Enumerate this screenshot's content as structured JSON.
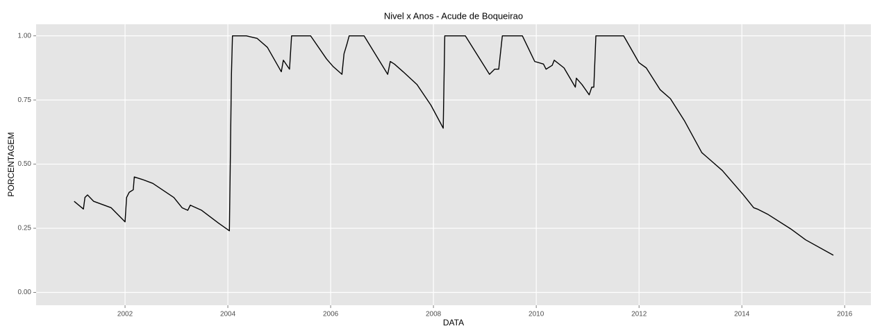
{
  "chart_data": {
    "type": "line",
    "title": "Nivel x Anos - Acude de Boqueirao",
    "x_label": "DATA",
    "y_label": "PORCENTAGEM",
    "grid": true,
    "color": "#000000",
    "xlim": [
      2000.27,
      2016.51
    ],
    "xticks": [
      2002,
      2004,
      2006,
      2008,
      2010,
      2012,
      2014,
      2016
    ],
    "ylim": [
      -0.05,
      1.045
    ],
    "yticks": [
      {
        "value": 0,
        "label": "0.00"
      },
      {
        "value": 0.25,
        "label": "0.25"
      },
      {
        "value": 0.5,
        "label": "0.50"
      },
      {
        "value": 0.75,
        "label": "0.75"
      },
      {
        "value": 1,
        "label": "1.00"
      }
    ],
    "x": [
      2001.01,
      2001.19,
      2001.22,
      2001.27,
      2001.39,
      2001.73,
      2002.0,
      2002.03,
      2002.08,
      2002.16,
      2002.18,
      2002.34,
      2002.54,
      2002.95,
      2003.11,
      2003.22,
      2003.27,
      2003.49,
      2003.82,
      2004.03,
      2004.07,
      2004.09,
      2004.36,
      2004.57,
      2004.77,
      2005.04,
      2005.08,
      2005.2,
      2005.24,
      2005.61,
      2005.92,
      2006.05,
      2006.22,
      2006.26,
      2006.32,
      2006.36,
      2006.65,
      2007.11,
      2007.16,
      2007.24,
      2007.41,
      2007.68,
      2007.95,
      2008.19,
      2008.22,
      2008.62,
      2009.09,
      2009.19,
      2009.27,
      2009.34,
      2009.73,
      2009.97,
      2010.14,
      2010.19,
      2010.31,
      2010.35,
      2010.54,
      2010.76,
      2010.78,
      2010.89,
      2011.03,
      2011.08,
      2011.12,
      2011.16,
      2011.7,
      2012.0,
      2012.14,
      2012.41,
      2012.61,
      2012.88,
      2013.22,
      2013.62,
      2014.03,
      2014.23,
      2014.3,
      2014.5,
      2014.97,
      2015.24,
      2015.78
    ],
    "values": [
      0.355,
      0.325,
      0.37,
      0.38,
      0.355,
      0.33,
      0.275,
      0.37,
      0.39,
      0.4,
      0.45,
      0.44,
      0.425,
      0.37,
      0.33,
      0.32,
      0.34,
      0.32,
      0.27,
      0.24,
      0.85,
      1.0,
      1.0,
      0.99,
      0.955,
      0.86,
      0.905,
      0.87,
      1.0,
      1.0,
      0.91,
      0.88,
      0.85,
      0.93,
      0.97,
      1.0,
      1.0,
      0.85,
      0.9,
      0.89,
      0.86,
      0.81,
      0.73,
      0.64,
      1.0,
      1.0,
      0.85,
      0.87,
      0.87,
      1.0,
      1.0,
      0.9,
      0.89,
      0.87,
      0.885,
      0.905,
      0.875,
      0.8,
      0.835,
      0.81,
      0.77,
      0.8,
      0.8,
      1.0,
      1.0,
      0.895,
      0.875,
      0.79,
      0.755,
      0.67,
      0.545,
      0.475,
      0.38,
      0.33,
      0.325,
      0.305,
      0.245,
      0.205,
      0.145
    ]
  }
}
